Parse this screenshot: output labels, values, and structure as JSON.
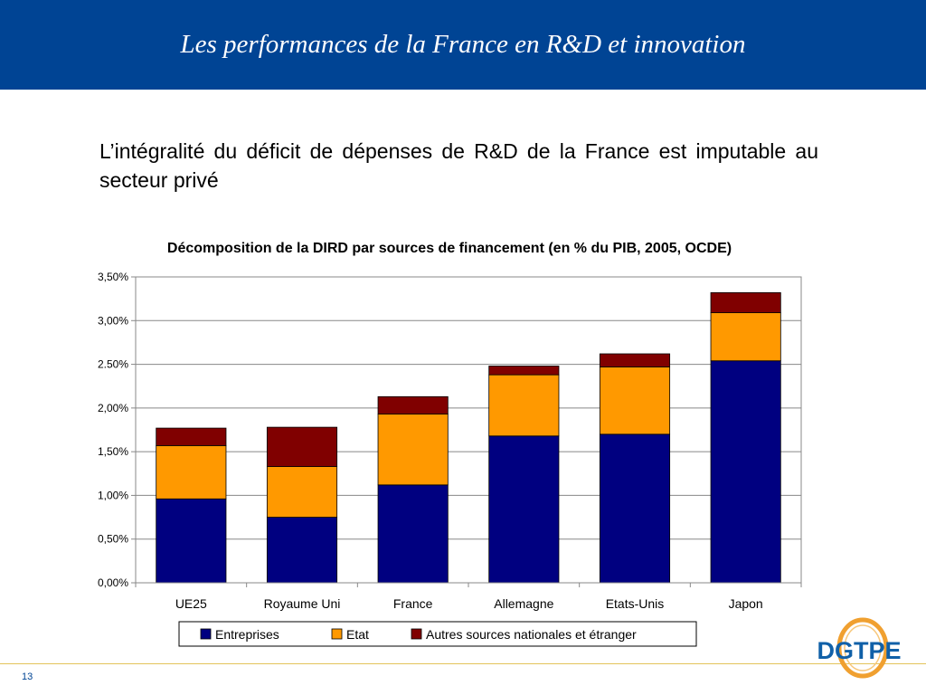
{
  "header": {
    "title": "Les performances de la France en R&D et innovation"
  },
  "subtitle": "L’intégralité du déficit de dépenses de R&D de la France est imputable au secteur privé",
  "page_number": "13",
  "logo": {
    "text": "DGTPE"
  },
  "colors": {
    "header_bg": "#004494",
    "entreprises": "#000080",
    "etat": "#FF9900",
    "autres": "#800000"
  },
  "chart_data": {
    "type": "bar",
    "stacked": true,
    "title": "Décomposition de la DIRD par sources de financement (en % du PIB, 2005, OCDE)",
    "categories": [
      "UE25",
      "Royaume Uni",
      "France",
      "Allemagne",
      "Etats-Unis",
      "Japon"
    ],
    "series": [
      {
        "name": "Entreprises",
        "color": "#000080",
        "values": [
          0.96,
          0.75,
          1.12,
          1.68,
          1.7,
          2.54
        ]
      },
      {
        "name": "Etat",
        "color": "#FF9900",
        "values": [
          0.61,
          0.58,
          0.81,
          0.7,
          0.77,
          0.55
        ]
      },
      {
        "name": "Autres sources nationales et étranger",
        "color": "#800000",
        "values": [
          0.2,
          0.45,
          0.2,
          0.1,
          0.15,
          0.23
        ]
      }
    ],
    "yticks": [
      "0,00%",
      "0,50%",
      "1,00%",
      "1,50%",
      "2,00%",
      "2.50%",
      "3,00%",
      "3,50%"
    ],
    "ylim": [
      0,
      3.5
    ],
    "xlabel": "",
    "ylabel": "",
    "grid": true,
    "legend_position": "bottom"
  }
}
